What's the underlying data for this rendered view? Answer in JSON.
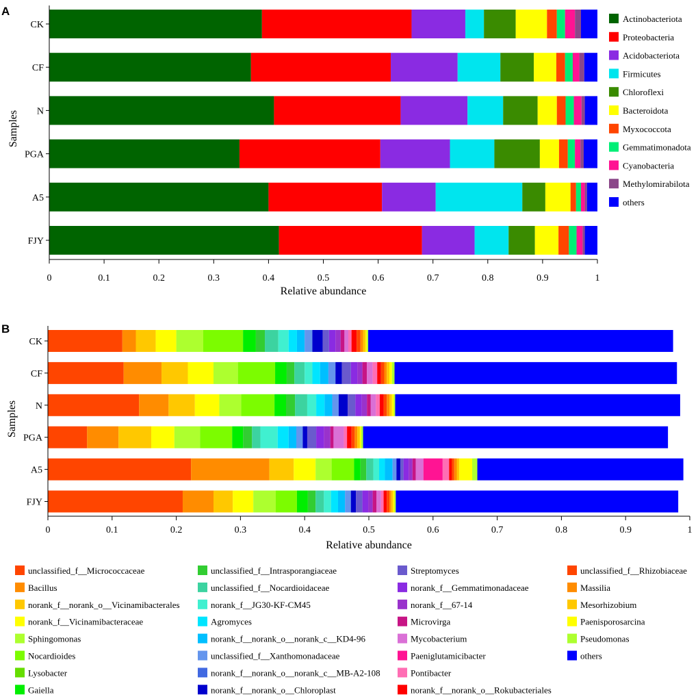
{
  "chart_data": [
    {
      "type": "bar",
      "orientation": "horizontal-stacked",
      "panel_label": "A",
      "ylabel": "Samples",
      "xlabel": "Relative abundance",
      "xlim": [
        0,
        1
      ],
      "xticks": [
        "0",
        "0.1",
        "0.2",
        "0.3",
        "0.4",
        "0.5",
        "0.6",
        "0.7",
        "0.8",
        "0.9",
        "1"
      ],
      "categories": [
        "CK",
        "CF",
        "N",
        "PGA",
        "A5",
        "FJY"
      ],
      "legend_position": "right",
      "series": [
        {
          "name": "Actinobacteriota",
          "color": "#006400",
          "values": [
            0.388,
            0.368,
            0.41,
            0.347,
            0.4,
            0.419
          ]
        },
        {
          "name": "Proteobacteria",
          "color": "#FF0000",
          "values": [
            0.273,
            0.255,
            0.231,
            0.257,
            0.207,
            0.261
          ]
        },
        {
          "name": "Acidobacteriota",
          "color": "#8A2BE2",
          "values": [
            0.098,
            0.122,
            0.122,
            0.127,
            0.098,
            0.096
          ]
        },
        {
          "name": "Firmicutes",
          "color": "#00E5EE",
          "values": [
            0.034,
            0.078,
            0.065,
            0.081,
            0.158,
            0.062
          ]
        },
        {
          "name": "Chloroflexi",
          "color": "#3A8B00",
          "values": [
            0.058,
            0.061,
            0.063,
            0.083,
            0.042,
            0.048
          ]
        },
        {
          "name": "Bacteroidota",
          "color": "#FFFF00",
          "values": [
            0.057,
            0.041,
            0.035,
            0.035,
            0.046,
            0.043
          ]
        },
        {
          "name": "Myxococcota",
          "color": "#FF4500",
          "values": [
            0.018,
            0.016,
            0.016,
            0.016,
            0.01,
            0.019
          ]
        },
        {
          "name": "Gemmatimonadota",
          "color": "#00EE76",
          "values": [
            0.015,
            0.014,
            0.015,
            0.013,
            0.009,
            0.014
          ]
        },
        {
          "name": "Cyanobacteria",
          "color": "#FF1493",
          "values": [
            0.018,
            0.012,
            0.014,
            0.01,
            0.007,
            0.011
          ]
        },
        {
          "name": "Methylomirabilota",
          "color": "#8B4789",
          "values": [
            0.011,
            0.009,
            0.006,
            0.006,
            0.004,
            0.004
          ]
        },
        {
          "name": "others",
          "color": "#0000FF",
          "values": [
            0.03,
            0.024,
            0.023,
            0.025,
            0.019,
            0.023
          ]
        }
      ]
    },
    {
      "type": "bar",
      "orientation": "horizontal-stacked",
      "panel_label": "B",
      "ylabel": "Samples",
      "xlabel": "Relative abundance",
      "xlim": [
        0,
        1
      ],
      "xticks": [
        "0",
        "0.1",
        "0.2",
        "0.3",
        "0.4",
        "0.5",
        "0.6",
        "0.7",
        "0.8",
        "0.9",
        "1"
      ],
      "categories": [
        "CK",
        "CF",
        "N",
        "PGA",
        "A5",
        "FJY"
      ],
      "legend_position": "bottom",
      "series": [
        {
          "name": "unclassified_f__Micrococcaceae",
          "color": "#FF4500",
          "values": [
            0.116,
            0.118,
            0.142,
            0.061,
            0.223,
            0.21
          ]
        },
        {
          "name": "Bacillus",
          "color": "#FF8C00",
          "values": [
            0.021,
            0.059,
            0.046,
            0.049,
            0.122,
            0.048
          ]
        },
        {
          "name": "norank_f__norank_o__Vicinamibacterales",
          "color": "#FFC800",
          "values": [
            0.031,
            0.041,
            0.041,
            0.051,
            0.038,
            0.03
          ]
        },
        {
          "name": "norank_f__Vicinamibacteraceae",
          "color": "#FFFF00",
          "values": [
            0.032,
            0.04,
            0.038,
            0.036,
            0.034,
            0.032
          ]
        },
        {
          "name": "Sphingomonas",
          "color": "#ADFF2F",
          "values": [
            0.042,
            0.038,
            0.034,
            0.04,
            0.025,
            0.035
          ]
        },
        {
          "name": "Nocardioides",
          "color": "#7CFC00",
          "values": [
            0.062,
            0.058,
            0.052,
            0.05,
            0.035,
            0.033
          ]
        },
        {
          "name": "Lysobacter",
          "color": "#66DD00",
          "values": [
            0.0,
            0.0,
            0.0,
            0.0,
            0.0,
            0.0
          ]
        },
        {
          "name": "Gaiella",
          "color": "#00EE00",
          "values": [
            0.02,
            0.018,
            0.018,
            0.017,
            0.01,
            0.017
          ]
        },
        {
          "name": "unclassified_f__Intrasporangiaceae",
          "color": "#32CD32",
          "values": [
            0.014,
            0.012,
            0.014,
            0.014,
            0.009,
            0.012
          ]
        },
        {
          "name": "unclassified_f__Nocardioidaceae",
          "color": "#3CD3A0",
          "values": [
            0.021,
            0.016,
            0.019,
            0.013,
            0.011,
            0.013
          ]
        },
        {
          "name": "norank_f__JG30-KF-CM45",
          "color": "#40F0D0",
          "values": [
            0.016,
            0.012,
            0.014,
            0.027,
            0.009,
            0.011
          ]
        },
        {
          "name": "Agromyces",
          "color": "#00E5FF",
          "values": [
            0.013,
            0.012,
            0.013,
            0.017,
            0.009,
            0.011
          ]
        },
        {
          "name": "norank_f__norank_o__norank_c__KD4-96",
          "color": "#00BFFF",
          "values": [
            0.012,
            0.013,
            0.012,
            0.012,
            0.012,
            0.011
          ]
        },
        {
          "name": "unclassified_f__Xanthomonadaceae",
          "color": "#6495ED",
          "values": [
            0.012,
            0.011,
            0.01,
            0.01,
            0.006,
            0.009
          ]
        },
        {
          "name": "norank_f__norank_o__norank_c__MB-A2-108",
          "color": "#4169E1",
          "values": [
            0.0,
            0.0,
            0.0,
            0.0,
            0.0,
            0.0
          ]
        },
        {
          "name": "norank_f__norank_o__Chloroplast",
          "color": "#0000CD",
          "values": [
            0.016,
            0.01,
            0.014,
            0.007,
            0.006,
            0.008
          ]
        },
        {
          "name": "Streptomyces",
          "color": "#6A5ACD",
          "values": [
            0.01,
            0.014,
            0.012,
            0.014,
            0.005,
            0.01
          ]
        },
        {
          "name": "norank_f__Gemmatimonadaceae",
          "color": "#8A2BE2",
          "values": [
            0.01,
            0.01,
            0.01,
            0.012,
            0.008,
            0.009
          ]
        },
        {
          "name": "norank_f__67-14",
          "color": "#9932CC",
          "values": [
            0.008,
            0.008,
            0.008,
            0.01,
            0.006,
            0.007
          ]
        },
        {
          "name": "Microvirga",
          "color": "#C71585",
          "values": [
            0.006,
            0.007,
            0.006,
            0.005,
            0.005,
            0.006
          ]
        },
        {
          "name": "Mycobacterium",
          "color": "#DA70D6",
          "values": [
            0.006,
            0.009,
            0.008,
            0.016,
            0.012,
            0.007
          ]
        },
        {
          "name": "Paeniglutamicibacter",
          "color": "#FF1493",
          "values": [
            0.0,
            0.0,
            0.0,
            0.0,
            0.03,
            0.0
          ]
        },
        {
          "name": "Pontibacter",
          "color": "#FF6EB4",
          "values": [
            0.005,
            0.007,
            0.006,
            0.005,
            0.01,
            0.004
          ]
        },
        {
          "name": "norank_f__norank_o__Rokubacteriales",
          "color": "#FF0000",
          "values": [
            0.008,
            0.006,
            0.006,
            0.007,
            0.004,
            0.005
          ]
        },
        {
          "name": "unclassified_f__Rhizobiaceae",
          "color": "#FF4500",
          "values": [
            0.006,
            0.005,
            0.005,
            0.005,
            0.004,
            0.004
          ]
        },
        {
          "name": "Massilia",
          "color": "#FF8C00",
          "values": [
            0.004,
            0.004,
            0.004,
            0.004,
            0.004,
            0.003
          ]
        },
        {
          "name": "Mesorhizobium",
          "color": "#FFC800",
          "values": [
            0.004,
            0.004,
            0.004,
            0.004,
            0.004,
            0.003
          ]
        },
        {
          "name": "Paenisporosarcina",
          "color": "#FFFF00",
          "values": [
            0.002,
            0.004,
            0.003,
            0.002,
            0.02,
            0.002
          ]
        },
        {
          "name": "Pseudomonas",
          "color": "#ADFF2F",
          "values": [
            0.002,
            0.004,
            0.002,
            0.003,
            0.008,
            0.002
          ]
        },
        {
          "name": "others",
          "color": "#0000FF",
          "values": [
            0.475,
            0.44,
            0.444,
            0.475,
            0.321,
            0.44
          ]
        }
      ]
    }
  ]
}
